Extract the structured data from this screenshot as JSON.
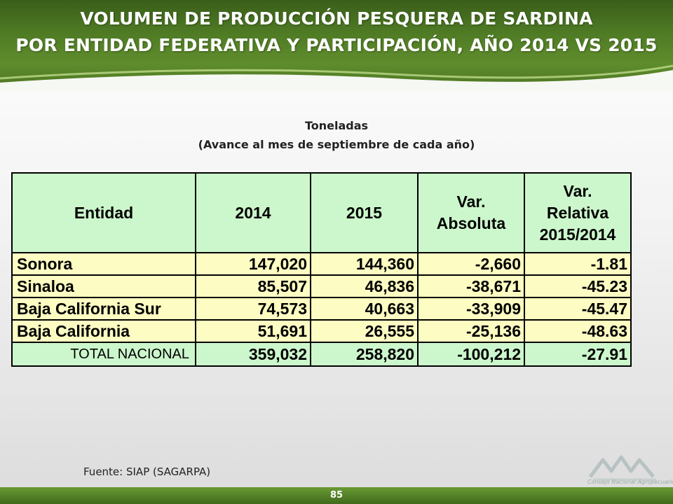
{
  "header": {
    "title_line1": "VOLUMEN DE PRODUCCIÓN PESQUERA  DE SARDINA",
    "title_line2": "POR ENTIDAD FEDERATIVA Y PARTICIPACIÓN, AÑO 2014 VS 2015"
  },
  "subtitle": {
    "line1": "Toneladas",
    "line2": "(Avance al mes de septiembre de cada año)"
  },
  "table": {
    "headers": {
      "entidad": "Entidad",
      "y2014": "2014",
      "y2015": "2015",
      "var_abs_1": "Var.",
      "var_abs_2": "Absoluta",
      "var_rel_1": "Var.",
      "var_rel_2": "Relativa",
      "var_rel_3": "2015/2014"
    },
    "rows": [
      {
        "entidad": "Sonora",
        "y2014": "147,020",
        "y2015": "144,360",
        "var_abs": "-2,660",
        "var_rel": "-1.81"
      },
      {
        "entidad": "Sinaloa",
        "y2014": "85,507",
        "y2015": "46,836",
        "var_abs": "-38,671",
        "var_rel": "-45.23"
      },
      {
        "entidad": "Baja California Sur",
        "y2014": "74,573",
        "y2015": "40,663",
        "var_abs": "-33,909",
        "var_rel": "-45.47"
      },
      {
        "entidad": "Baja California",
        "y2014": "51,691",
        "y2015": "26,555",
        "var_abs": "-25,136",
        "var_rel": "-48.63"
      }
    ],
    "total": {
      "entidad": "TOTAL NACIONAL",
      "y2014": "359,032",
      "y2015": "258,820",
      "var_abs": "-100,212",
      "var_rel": "-27.91"
    }
  },
  "footer": {
    "source": "Fuente: SIAP (SAGARPA)",
    "page_number": "85",
    "logo_icon": "consejo-nacional-agropecuario-logo",
    "logo_text": "Consejo Nacional Agropecuario"
  },
  "colors": {
    "banner_green": "#4e7a24",
    "header_cell": "#ccf7cc",
    "data_cell": "#fdfcc2"
  }
}
